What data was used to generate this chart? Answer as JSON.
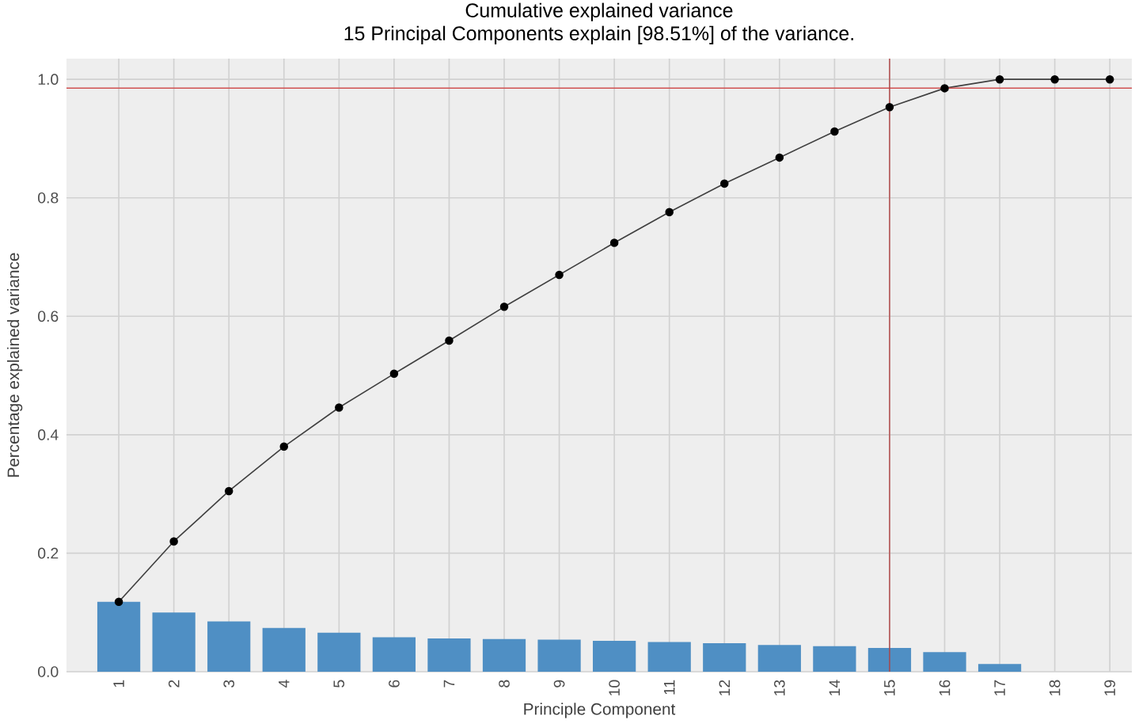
{
  "chart_data": {
    "type": "bar",
    "title": "Cumulative explained variance",
    "subtitle": "15 Principal Components explain [98.51%] of the variance.",
    "xlabel": "Principle Component",
    "ylabel": "Percentage explained variance",
    "categories": [
      "1",
      "2",
      "3",
      "4",
      "5",
      "6",
      "7",
      "8",
      "9",
      "10",
      "11",
      "12",
      "13",
      "14",
      "15",
      "16",
      "17",
      "18",
      "19"
    ],
    "series": [
      {
        "color": "#4f8fc4",
        "values": [
          0.118,
          0.1,
          0.085,
          0.074,
          0.066,
          0.058,
          0.056,
          0.055,
          0.054,
          0.052,
          0.05,
          0.048,
          0.045,
          0.043,
          0.04,
          0.033,
          0.013,
          0.0,
          0.0
        ]
      },
      {
        "type": "line",
        "color": "#404040",
        "marker": "circle",
        "values": [
          0.118,
          0.22,
          0.305,
          0.38,
          0.446,
          0.503,
          0.559,
          0.616,
          0.67,
          0.724,
          0.776,
          0.824,
          0.868,
          0.912,
          0.953,
          0.985,
          1.0,
          1.0,
          1.0
        ]
      }
    ],
    "ylim": [
      0,
      1.035
    ],
    "yticks": [
      {
        "value": 0,
        "label": "0.0"
      },
      0.2,
      0.4,
      0.6,
      0.8,
      {
        "value": 1,
        "label": "1.0"
      }
    ],
    "ref_lines": [
      {
        "axis": "y",
        "value": 0.9851,
        "color": "#d05050"
      },
      {
        "axis": "x",
        "value": "15",
        "color": "#b04040"
      }
    ],
    "grid": true
  }
}
